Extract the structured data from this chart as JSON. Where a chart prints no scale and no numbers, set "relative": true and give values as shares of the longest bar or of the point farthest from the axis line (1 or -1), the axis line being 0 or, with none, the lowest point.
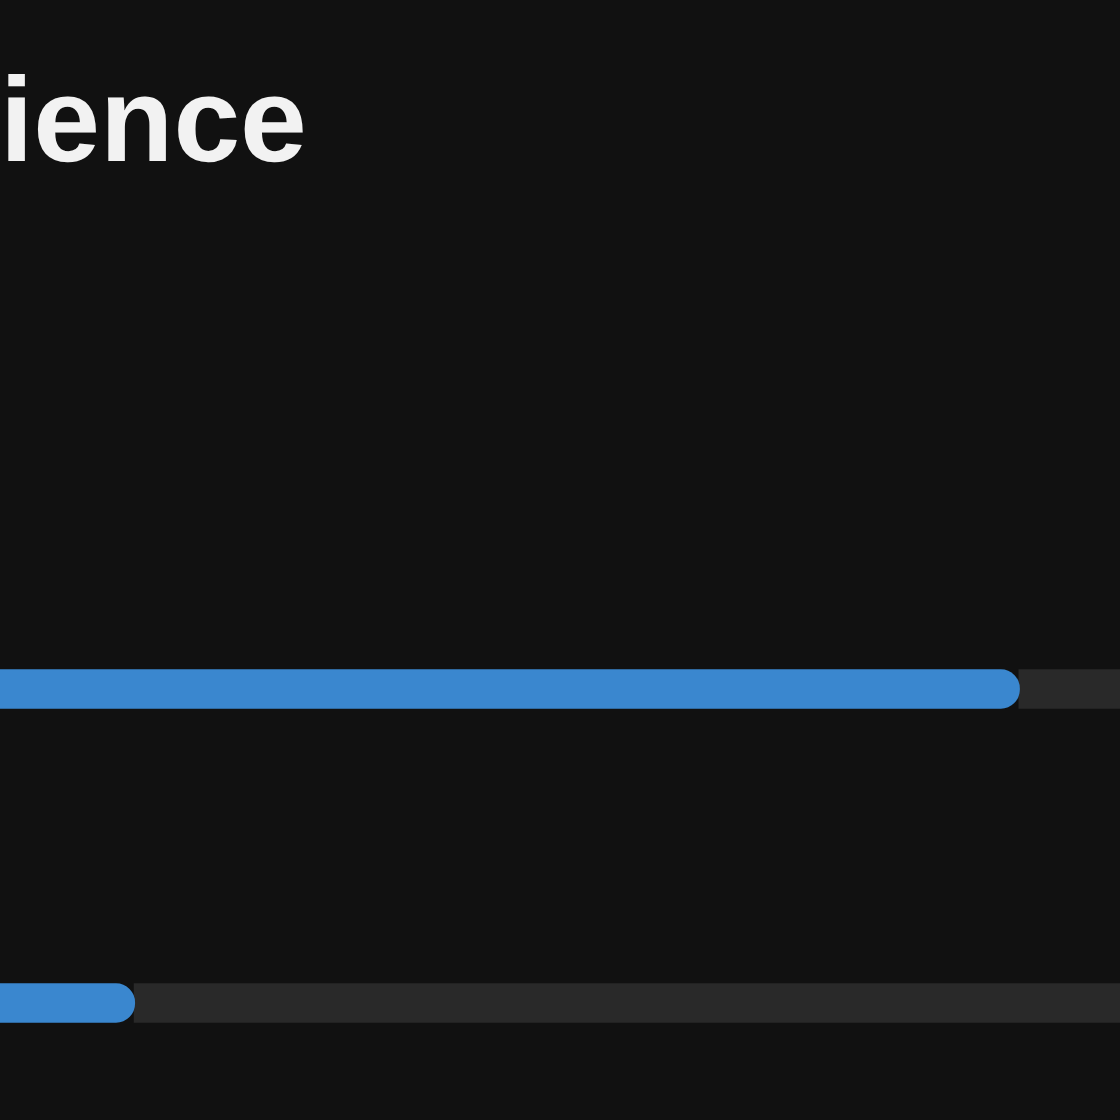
{
  "chart_data": {
    "type": "bar",
    "title": "ience",
    "orientation": "horizontal",
    "stacked": true,
    "relative": true,
    "categories": [
      null,
      null
    ],
    "series": [
      {
        "color": "#3a87cf",
        "values": [
          0.91,
          0.12
        ]
      },
      {
        "color": "#292929",
        "values": [
          0.09,
          0.88
        ]
      }
    ]
  }
}
